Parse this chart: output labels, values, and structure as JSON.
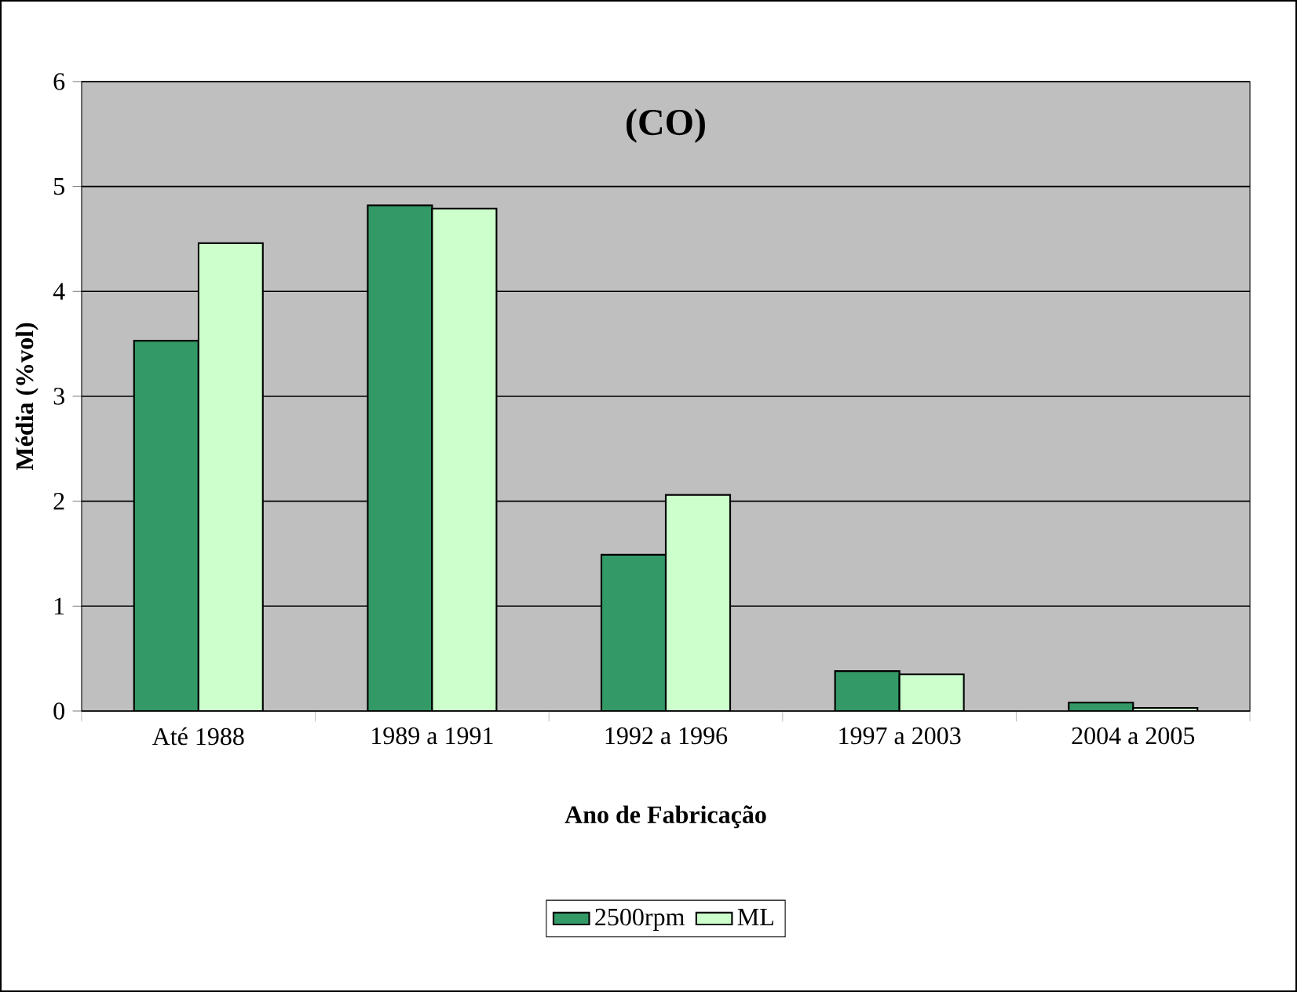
{
  "chart_data": {
    "type": "bar",
    "title": "(CO)",
    "xlabel": "Ano de Fabricação",
    "ylabel": "Média (%vol)",
    "categories": [
      "Até 1988",
      "1989 a 1991",
      "1992 a 1996",
      "1997 a 2003",
      "2004 a 2005"
    ],
    "series": [
      {
        "name": "2500rpm",
        "color": "#339966",
        "values": [
          3.53,
          4.82,
          1.49,
          0.38,
          0.08
        ]
      },
      {
        "name": "ML",
        "color": "#ccffcc",
        "values": [
          4.46,
          4.79,
          2.06,
          0.35,
          0.03
        ]
      }
    ],
    "ylim": [
      0,
      6
    ],
    "yticks": [
      0,
      1,
      2,
      3,
      4,
      5,
      6
    ],
    "grid": "y",
    "legend": "bottom"
  }
}
